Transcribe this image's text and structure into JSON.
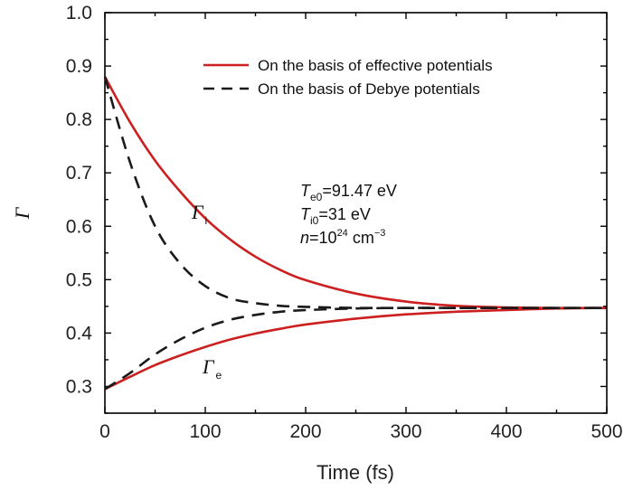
{
  "chart_data": {
    "type": "line",
    "xlabel": "Time (fs)",
    "ylabel": "Γ",
    "xlim": [
      0,
      500
    ],
    "ylim": [
      0.25,
      1.0
    ],
    "xticks": [
      0,
      100,
      200,
      300,
      400,
      500
    ],
    "yticks": [
      0.3,
      0.4,
      0.5,
      0.6,
      0.7,
      0.8,
      0.9,
      1.0
    ],
    "x_ticklabels": [
      "0",
      "100",
      "200",
      "300",
      "400",
      "500"
    ],
    "y_ticklabels": [
      "0.3",
      "0.4",
      "0.5",
      "0.6",
      "0.7",
      "0.8",
      "0.9",
      "1.0"
    ],
    "legend_placement": "top-right",
    "series": [
      {
        "name": "On the basis of effective potentials",
        "label": "Γi",
        "color": "#cc1f1f",
        "style": "solid",
        "x": [
          0,
          25,
          50,
          75,
          100,
          125,
          150,
          175,
          200,
          250,
          300,
          350,
          400,
          450,
          500
        ],
        "y": [
          0.88,
          0.795,
          0.723,
          0.665,
          0.615,
          0.575,
          0.543,
          0.518,
          0.499,
          0.474,
          0.459,
          0.451,
          0.448,
          0.447,
          0.447
        ]
      },
      {
        "name": "On the basis of effective potentials",
        "label": "Γe",
        "color": "#cc1f1f",
        "style": "solid",
        "x": [
          0,
          25,
          50,
          75,
          100,
          125,
          150,
          175,
          200,
          250,
          300,
          350,
          400,
          450,
          500
        ],
        "y": [
          0.295,
          0.318,
          0.34,
          0.358,
          0.374,
          0.388,
          0.399,
          0.408,
          0.416,
          0.427,
          0.435,
          0.44,
          0.443,
          0.446,
          0.447
        ]
      },
      {
        "name": "On the basis of Debye potentials",
        "label": "Γi",
        "color": "#1a1a1a",
        "style": "dashed",
        "x": [
          0,
          25,
          50,
          75,
          100,
          125,
          150,
          175,
          200,
          250,
          300,
          350,
          400,
          450,
          500
        ],
        "y": [
          0.88,
          0.72,
          0.6,
          0.53,
          0.488,
          0.465,
          0.456,
          0.451,
          0.449,
          0.447,
          0.447,
          0.447,
          0.447,
          0.447,
          0.447
        ]
      },
      {
        "name": "On the basis of Debye potentials",
        "label": "Γe",
        "color": "#1a1a1a",
        "style": "dashed",
        "x": [
          0,
          25,
          50,
          75,
          100,
          125,
          150,
          175,
          200,
          250,
          300,
          350,
          400,
          450,
          500
        ],
        "y": [
          0.295,
          0.325,
          0.36,
          0.388,
          0.41,
          0.425,
          0.434,
          0.44,
          0.443,
          0.446,
          0.447,
          0.447,
          0.447,
          0.447,
          0.447
        ]
      }
    ],
    "legend": [
      {
        "text": "On the basis of effective potentials",
        "color": "#cc1f1f",
        "style": "solid"
      },
      {
        "text": "On the basis of Debye potentials",
        "color": "#1a1a1a",
        "style": "dashed"
      }
    ],
    "curve_labels": {
      "gamma_i": {
        "symbol": "Γ",
        "subscript": "i"
      },
      "gamma_e": {
        "symbol": "Γ",
        "subscript": "e"
      }
    },
    "annotations": {
      "te0": {
        "var": "T",
        "sub": "e0",
        "rest": "=91.47 eV"
      },
      "ti0": {
        "var": "T",
        "sub": "i0",
        "rest": "=31 eV"
      },
      "n": {
        "var": "n",
        "eq": "=10",
        "sup1": "24",
        "unit": " cm",
        "sup2": "−3"
      }
    }
  }
}
